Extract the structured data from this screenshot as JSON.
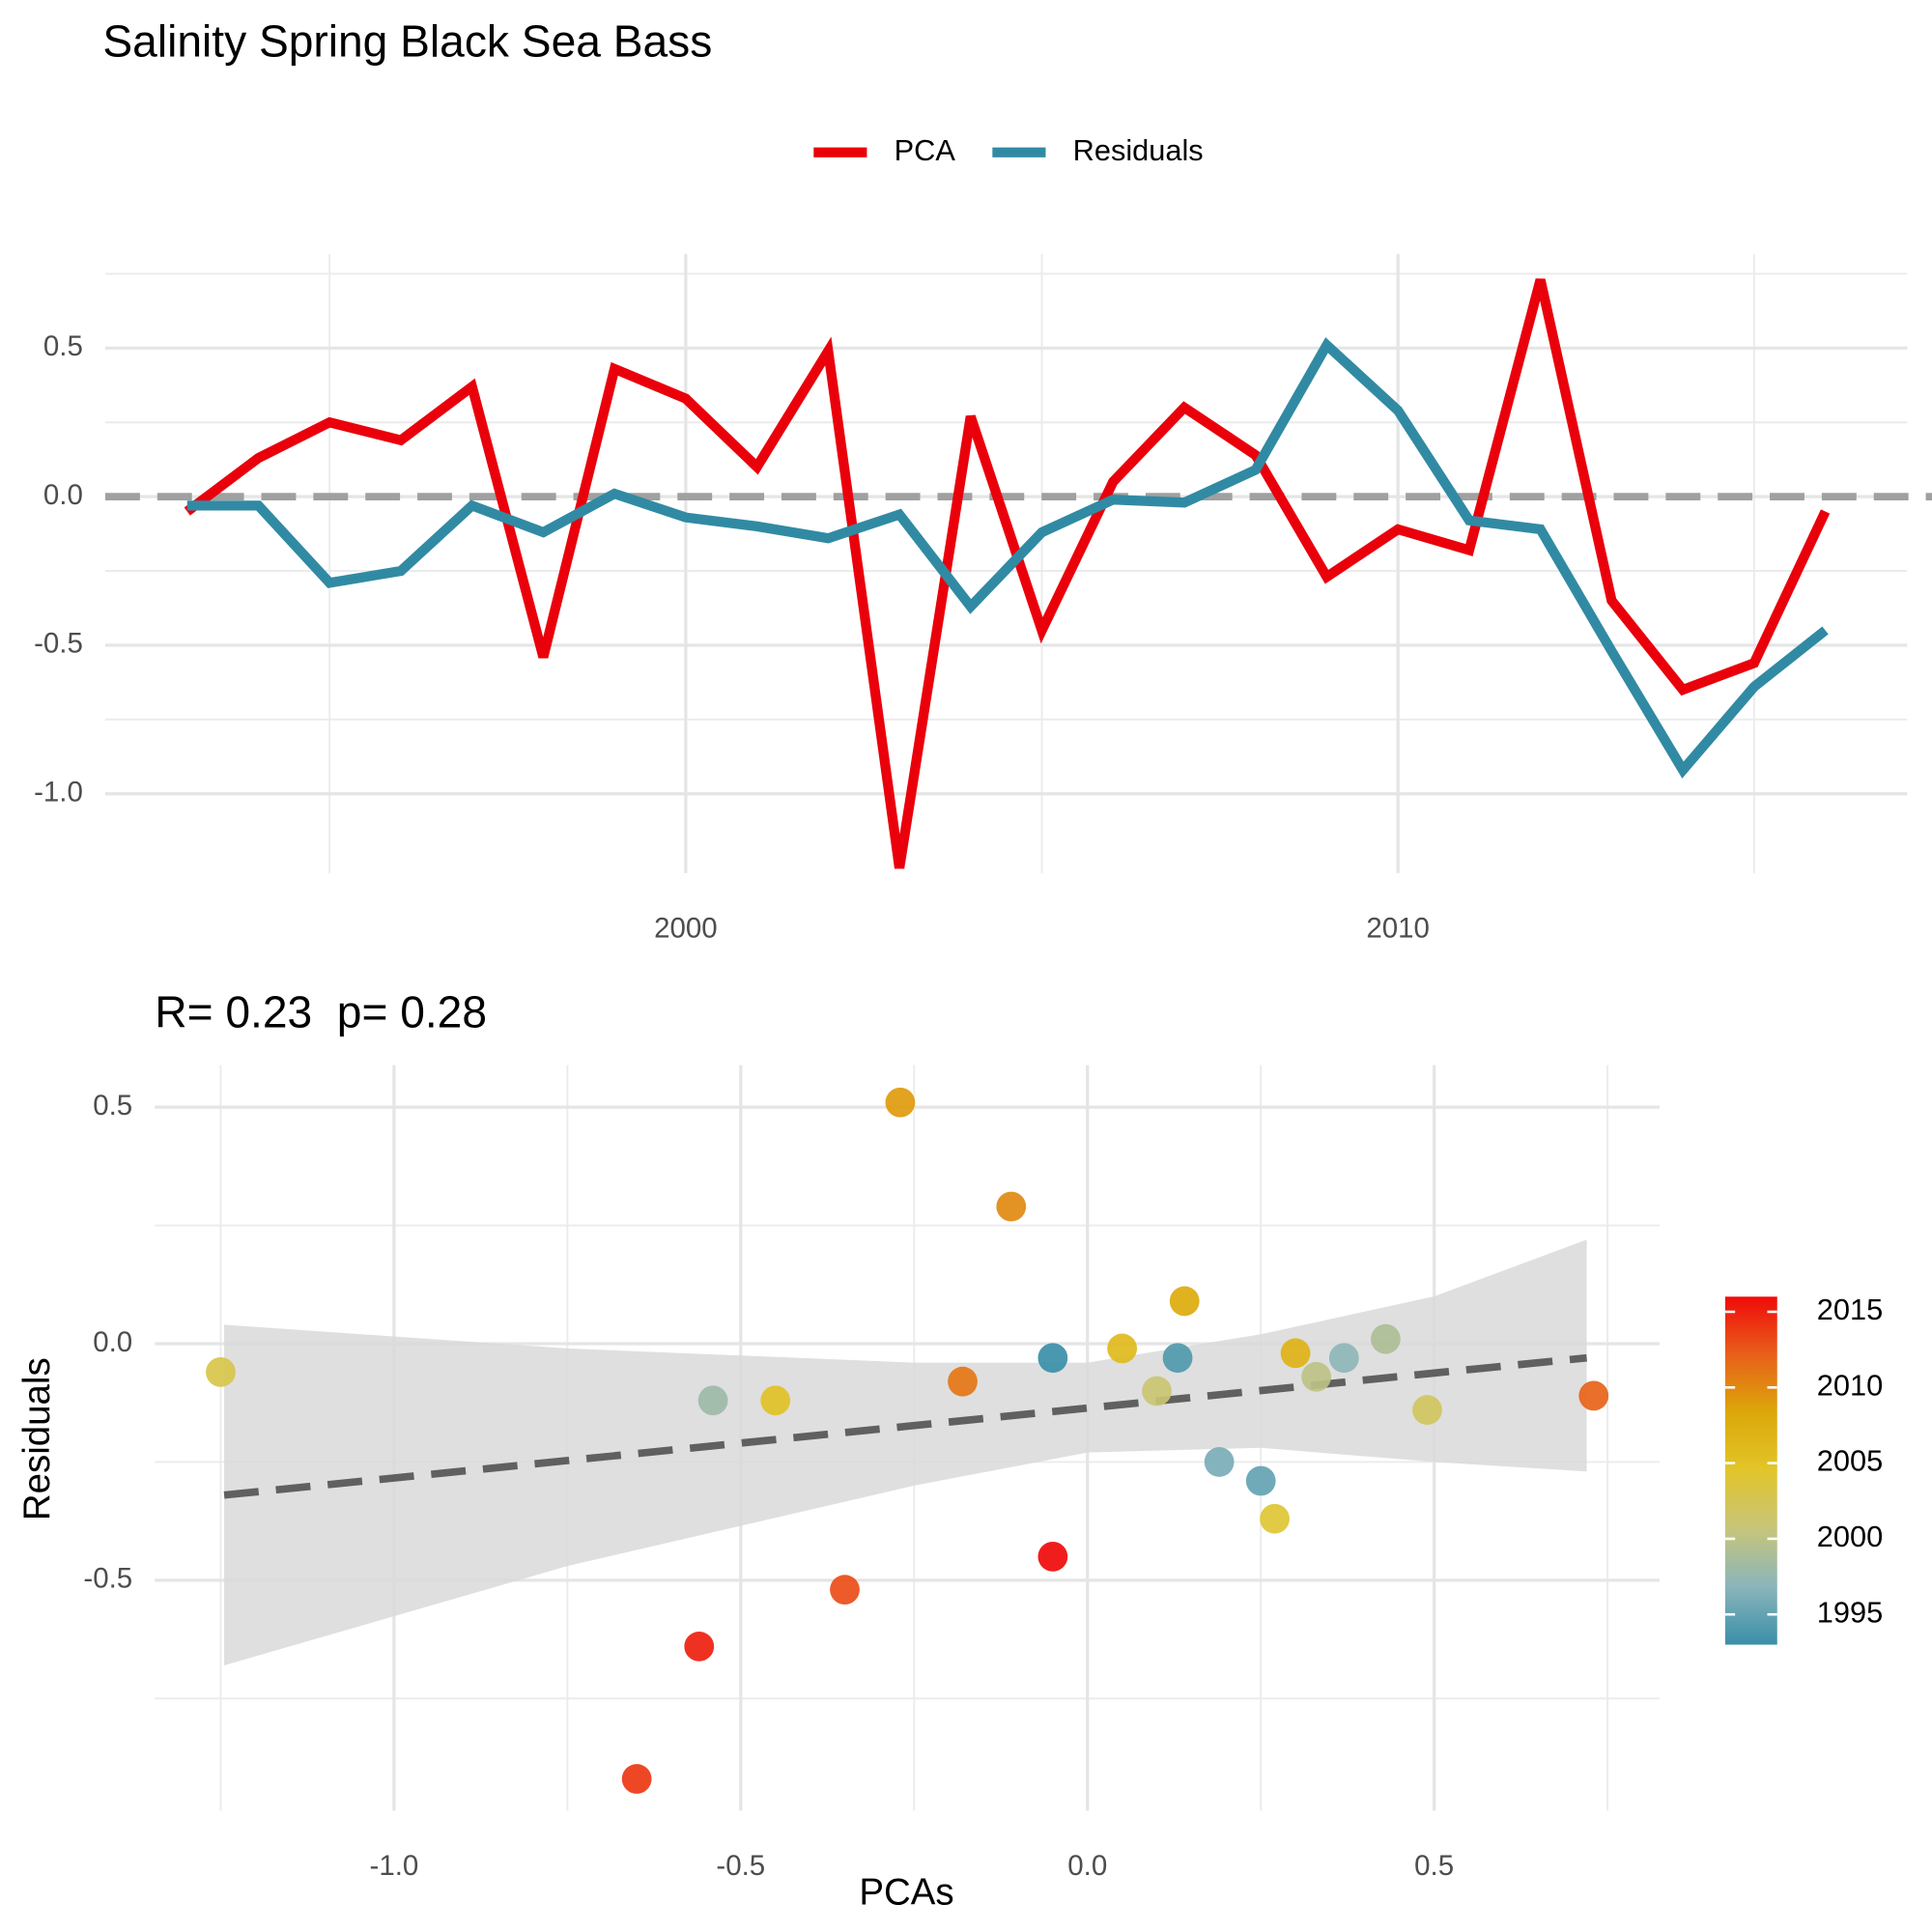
{
  "chart_data": [
    {
      "type": "line",
      "title": "Salinity Spring Black Sea Bass",
      "x": [
        1993,
        1994,
        1995,
        1996,
        1997,
        1998,
        1999,
        2000,
        2001,
        2002,
        2003,
        2004,
        2005,
        2006,
        2007,
        2008,
        2009,
        2010,
        2011,
        2012,
        2013,
        2014,
        2015,
        2016
      ],
      "series": [
        {
          "name": "PCA",
          "color": "#ea000b",
          "values": [
            -0.05,
            0.13,
            0.25,
            0.19,
            0.37,
            -0.54,
            0.43,
            0.33,
            0.1,
            0.49,
            -1.25,
            0.27,
            -0.45,
            0.05,
            0.3,
            0.14,
            -0.27,
            -0.11,
            -0.18,
            0.73,
            -0.35,
            -0.65,
            -0.56,
            -0.05
          ]
        },
        {
          "name": "Residuals",
          "color": "#318aa3",
          "values": [
            -0.03,
            -0.03,
            -0.29,
            -0.25,
            -0.03,
            -0.12,
            0.01,
            -0.07,
            -0.1,
            -0.14,
            -0.06,
            -0.37,
            -0.12,
            -0.01,
            -0.02,
            0.09,
            0.51,
            0.29,
            -0.08,
            -0.11,
            -0.52,
            -0.92,
            -0.64,
            -0.45
          ]
        }
      ],
      "xlim": [
        1991.85,
        2017.15
      ],
      "xticks": [
        2000,
        2010
      ],
      "minor_xticks": [
        1995,
        2005,
        2015
      ],
      "ylim": [
        -1.267,
        0.817
      ],
      "yticks": [
        {
          "value": -1.0,
          "label": "-1.0"
        },
        -0.5,
        {
          "value": 0,
          "label": "0.0"
        },
        0.5
      ],
      "minor_yticks": [
        -0.75,
        -0.25,
        0.25,
        0.75
      ],
      "reference_line": {
        "value": 0,
        "color": "#a0a0a0"
      },
      "grid": true,
      "legend": "top"
    },
    {
      "type": "scatter",
      "title": "R= 0.23  p= 0.28",
      "xlabel": "PCAs",
      "ylabel": "Residuals",
      "x": [
        -0.05,
        0.13,
        0.25,
        0.19,
        0.37,
        -0.54,
        0.43,
        0.33,
        0.1,
        0.49,
        -1.25,
        0.27,
        -0.45,
        0.05,
        0.3,
        0.14,
        -0.27,
        -0.11,
        -0.18,
        0.73,
        -0.35,
        -0.65,
        -0.56,
        -0.05
      ],
      "values": [
        -0.03,
        -0.03,
        -0.29,
        -0.25,
        -0.03,
        -0.12,
        0.01,
        -0.07,
        -0.1,
        -0.14,
        -0.06,
        -0.37,
        -0.12,
        -0.01,
        -0.02,
        0.09,
        0.51,
        0.29,
        -0.08,
        -0.11,
        -0.52,
        -0.92,
        -0.64,
        -0.45
      ],
      "years": [
        1993,
        1994,
        1995,
        1996,
        1997,
        1998,
        1999,
        2000,
        2001,
        2002,
        2003,
        2004,
        2005,
        2006,
        2007,
        2008,
        2009,
        2010,
        2011,
        2012,
        2013,
        2014,
        2015,
        2016
      ],
      "xlim": [
        -1.345,
        0.825
      ],
      "xticks": [
        {
          "value": -1.0,
          "label": "-1.0"
        },
        -0.5,
        {
          "value": 0,
          "label": "0.0"
        },
        0.5
      ],
      "minor_xticks": [
        -1.25,
        -0.75,
        -0.25,
        0.25,
        0.75
      ],
      "ylim": [
        -0.987,
        0.589
      ],
      "yticks": [
        -0.5,
        {
          "value": 0,
          "label": "0.0"
        },
        0.5
      ],
      "minor_yticks": [
        -0.75,
        -0.25,
        0.25
      ],
      "fit": {
        "x": [
          -1.245,
          -0.75,
          -0.25,
          0,
          0.25,
          0.5,
          0.72
        ],
        "y": [
          -0.32,
          -0.247,
          -0.173,
          -0.136,
          -0.099,
          -0.062,
          -0.03
        ],
        "lower": [
          -0.68,
          -0.47,
          -0.3,
          -0.23,
          -0.22,
          -0.25,
          -0.27
        ],
        "upper": [
          0.04,
          -0.01,
          -0.04,
          -0.04,
          0.02,
          0.1,
          0.22
        ],
        "color": "#606060",
        "band_color": "#d9d9d9"
      },
      "colorbar": {
        "lim": [
          1993,
          2016
        ],
        "ticks": [
          1995,
          2000,
          2005,
          2010,
          2015
        ],
        "colors": [
          "#3a8fa8",
          "#8ab5bb",
          "#c7c57a",
          "#e2c52a",
          "#dca80a",
          "#e8601a",
          "#f00a0a"
        ]
      },
      "grid": true
    }
  ]
}
